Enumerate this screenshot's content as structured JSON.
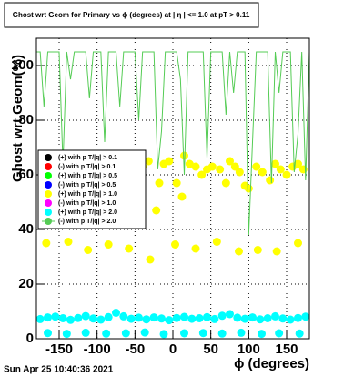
{
  "chart_data": {
    "type": "scatter",
    "title": "Ghost wrt Geom for Primary vs ϕ (degrees) at | η | <= 1.0 at pT > 0.11",
    "x_label": "ϕ (degrees)",
    "y_label": "Ghost wrt Geom(%)",
    "timestamp": "Sun Apr 25 10:40:36 2021",
    "xlim": [
      -180,
      180
    ],
    "ylim": [
      0,
      110
    ],
    "xticks": [
      -150,
      -100,
      -50,
      0,
      50,
      100,
      150
    ],
    "yticks": [
      0,
      20,
      40,
      60,
      80,
      100
    ],
    "grid": true,
    "legend": "left",
    "series": [
      {
        "name": "(+) with p T/|q| > 0.1",
        "color": "#000000",
        "style": "marker",
        "x": [],
        "values": []
      },
      {
        "name": "(-) with p T/|q| > 0.1",
        "color": "#ff0000",
        "style": "marker",
        "x": [],
        "values": []
      },
      {
        "name": "(+) with p T/|q| > 0.5",
        "color": "#00ff00",
        "style": "marker",
        "x": [],
        "values": []
      },
      {
        "name": "(-) with p T/|q| > 0.5",
        "color": "#0000ff",
        "style": "marker",
        "x": [],
        "values": []
      },
      {
        "name": "(+) with p T/|q| > 1.0",
        "color": "#ffff00",
        "style": "marker",
        "x": [
          -170,
          -160,
          -150,
          -138,
          -130,
          -118,
          -108,
          -95,
          -85,
          -72,
          -60,
          -50,
          -40,
          -32,
          -22,
          -18,
          -12,
          -5,
          5,
          12,
          15,
          22,
          30,
          38,
          45,
          52,
          62,
          70,
          75,
          82,
          88,
          95,
          100,
          110,
          118,
          128,
          135,
          142,
          150,
          158,
          165,
          172,
          -167,
          -138,
          -112,
          -85,
          -58,
          -30,
          3,
          30,
          58,
          87,
          112,
          137,
          165
        ],
        "values": [
          61,
          63,
          62,
          61,
          60,
          63,
          64,
          62,
          61,
          60,
          62,
          64,
          63,
          65,
          47,
          57,
          64,
          65,
          57,
          52,
          67,
          64,
          63,
          60,
          62,
          63,
          62,
          57,
          65,
          63,
          61,
          56,
          55,
          63,
          61,
          58,
          64,
          62,
          60,
          63,
          64,
          62,
          35,
          35.5,
          32.5,
          34.5,
          33,
          29,
          34.5,
          33,
          35.5,
          32,
          32.5,
          32,
          35
        ]
      },
      {
        "name": "(-) with p T/|q| > 1.0",
        "color": "#ff00ff",
        "style": "marker",
        "x": [],
        "values": []
      },
      {
        "name": "(+) with p T/|q| > 2.0",
        "color": "#00ffff",
        "style": "marker",
        "x": [
          -175,
          -165,
          -155,
          -145,
          -135,
          -125,
          -115,
          -105,
          -95,
          -85,
          -75,
          -65,
          -55,
          -45,
          -35,
          -25,
          -15,
          -5,
          5,
          15,
          25,
          35,
          45,
          55,
          65,
          75,
          85,
          95,
          105,
          115,
          125,
          135,
          145,
          155,
          165,
          175,
          -165,
          -140,
          -115,
          -88,
          -62,
          -37,
          -12,
          15,
          40,
          65,
          90,
          117,
          140,
          167
        ],
        "values": [
          7.2,
          7.8,
          8.1,
          7.5,
          6.9,
          7.6,
          8.3,
          7.4,
          7.0,
          7.9,
          9.5,
          8.2,
          7.3,
          7.7,
          7.1,
          7.8,
          7.4,
          6.8,
          7.6,
          8.0,
          7.3,
          7.5,
          7.9,
          7.2,
          8.4,
          9.0,
          7.7,
          7.3,
          7.8,
          7.1,
          7.5,
          8.2,
          7.4,
          7.0,
          7.6,
          8.1,
          2.1,
          1.8,
          2.2,
          1.9,
          2.0,
          2.3,
          1.7,
          2.0,
          2.1,
          1.9,
          2.2,
          1.8,
          2.0,
          1.9
        ]
      },
      {
        "name": "(-) with p T/|q| > 2.0",
        "color": "#55cc55",
        "style": "line",
        "x": [
          -180,
          -175,
          -170,
          -165,
          -160,
          -155,
          -150,
          -145,
          -140,
          -135,
          -130,
          -125,
          -120,
          -115,
          -110,
          -105,
          -100,
          -95,
          -90,
          -85,
          -80,
          -75,
          -70,
          -65,
          -60,
          -55,
          -50,
          -45,
          -40,
          -35,
          -30,
          -25,
          -20,
          -15,
          -10,
          -5,
          0,
          5,
          10,
          15,
          20,
          25,
          30,
          35,
          40,
          45,
          50,
          55,
          60,
          65,
          70,
          75,
          80,
          85,
          90,
          95,
          100,
          105,
          110,
          115,
          120,
          125,
          130,
          135,
          140,
          145,
          150,
          155,
          160,
          165,
          170,
          175,
          180
        ],
        "values": [
          105,
          105,
          85,
          105,
          105,
          105,
          105,
          64,
          105,
          95,
          105,
          105,
          105,
          105,
          88,
          105,
          105,
          105,
          72,
          105,
          105,
          105,
          85,
          105,
          105,
          105,
          105,
          80,
          105,
          105,
          105,
          105,
          62,
          76,
          105,
          105,
          105,
          105,
          95,
          60,
          105,
          105,
          105,
          105,
          105,
          66,
          105,
          105,
          105,
          105,
          82,
          105,
          90,
          105,
          105,
          105,
          38,
          72,
          105,
          105,
          105,
          105,
          57,
          105,
          90,
          105,
          105,
          105,
          61,
          75,
          105,
          58,
          105
        ]
      }
    ]
  }
}
